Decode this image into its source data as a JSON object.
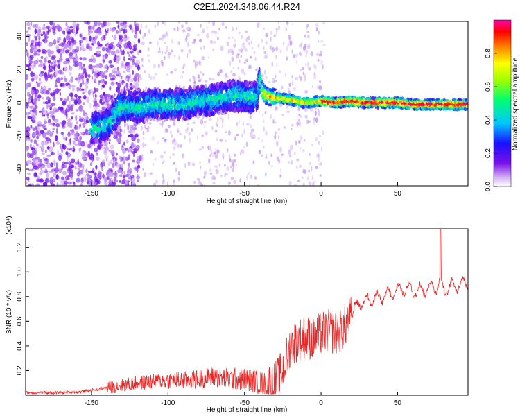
{
  "title": "C2E1.2024.348.06.44.R24",
  "chart_data": [
    {
      "type": "heatmap",
      "xlabel": "Height of straight line (km)",
      "ylabel": "Frequency (Hz)",
      "xlim": [
        -193,
        96
      ],
      "ylim": [
        -50,
        49
      ],
      "xticks": [
        "-150",
        "-100",
        "-50",
        "0",
        "50"
      ],
      "xtick_values": [
        -150,
        -100,
        -50,
        0,
        50
      ],
      "yticks": [
        "-40",
        "-20",
        "0",
        "20",
        "40"
      ],
      "ytick_values": [
        -40,
        -20,
        0,
        20,
        40
      ],
      "colorbar": {
        "label": "Normalized spectral amplitude",
        "range": [
          0,
          1
        ],
        "ticks": [
          "0.0",
          "0.2",
          "0.4",
          "0.6",
          "0.8"
        ],
        "tick_values": [
          0.0,
          0.2,
          0.4,
          0.6,
          0.8
        ],
        "colormap": [
          "#ffffff",
          "#c8a0f0",
          "#7a10e8",
          "#1a10ff",
          "#00c8ff",
          "#00ff70",
          "#a0ff00",
          "#ffff00",
          "#ff8000",
          "#ff0000",
          "#ff00aa"
        ]
      },
      "ridge": {
        "x": [
          -145,
          -138,
          -130,
          -120,
          -110,
          -100,
          -90,
          -80,
          -70,
          -60,
          -50,
          -42,
          -40,
          -38,
          -35,
          -30,
          -20,
          -10,
          0,
          10,
          20,
          30,
          40,
          50,
          60,
          70,
          80,
          90,
          96
        ],
        "y": [
          -15,
          -12,
          -2,
          -3,
          -1,
          -1,
          -1,
          1,
          2,
          4,
          4,
          3,
          15,
          6,
          4,
          3,
          2,
          0,
          1,
          0,
          1,
          0,
          0,
          0,
          -1,
          -1,
          -1,
          -1,
          -1
        ]
      },
      "grid": false
    },
    {
      "type": "line",
      "xlabel": "Height of straight line (km)",
      "ylabel": "SNR (10 * v/v)",
      "yscale_label": "(x10⁴)",
      "xlim": [
        -193,
        96
      ],
      "ylim": [
        0,
        1.35
      ],
      "xticks": [
        "-150",
        "-100",
        "-50",
        "0",
        "50"
      ],
      "xtick_values": [
        -150,
        -100,
        -50,
        0,
        50
      ],
      "yticks": [
        "0.2",
        "0.4",
        "0.6",
        "0.8",
        "1.0",
        "1.2"
      ],
      "ytick_values": [
        0.2,
        0.4,
        0.6,
        0.8,
        1.0,
        1.2
      ],
      "color": "#e82828",
      "series": [
        {
          "x": [
            -193,
            -170,
            -155,
            -140,
            -130,
            -120,
            -110,
            -100,
            -90,
            -80,
            -70,
            -60,
            -50,
            -45,
            -40,
            -35,
            -30,
            -25,
            -20,
            -15,
            -10,
            -5,
            0,
            5,
            10,
            15,
            20,
            25,
            30,
            35,
            40,
            45,
            50,
            55,
            60,
            65,
            70,
            75,
            78,
            80,
            85,
            90,
            96
          ],
          "y": [
            0.02,
            0.02,
            0.03,
            0.06,
            0.08,
            0.1,
            0.11,
            0.12,
            0.12,
            0.13,
            0.15,
            0.13,
            0.13,
            0.12,
            0.1,
            0.08,
            0.1,
            0.2,
            0.4,
            0.45,
            0.48,
            0.45,
            0.5,
            0.52,
            0.5,
            0.55,
            0.65,
            0.75,
            0.77,
            0.78,
            0.8,
            0.82,
            0.85,
            0.87,
            0.85,
            0.85,
            0.87,
            0.88,
            0.92,
            0.85,
            0.88,
            0.9,
            0.92
          ]
        }
      ]
    }
  ]
}
